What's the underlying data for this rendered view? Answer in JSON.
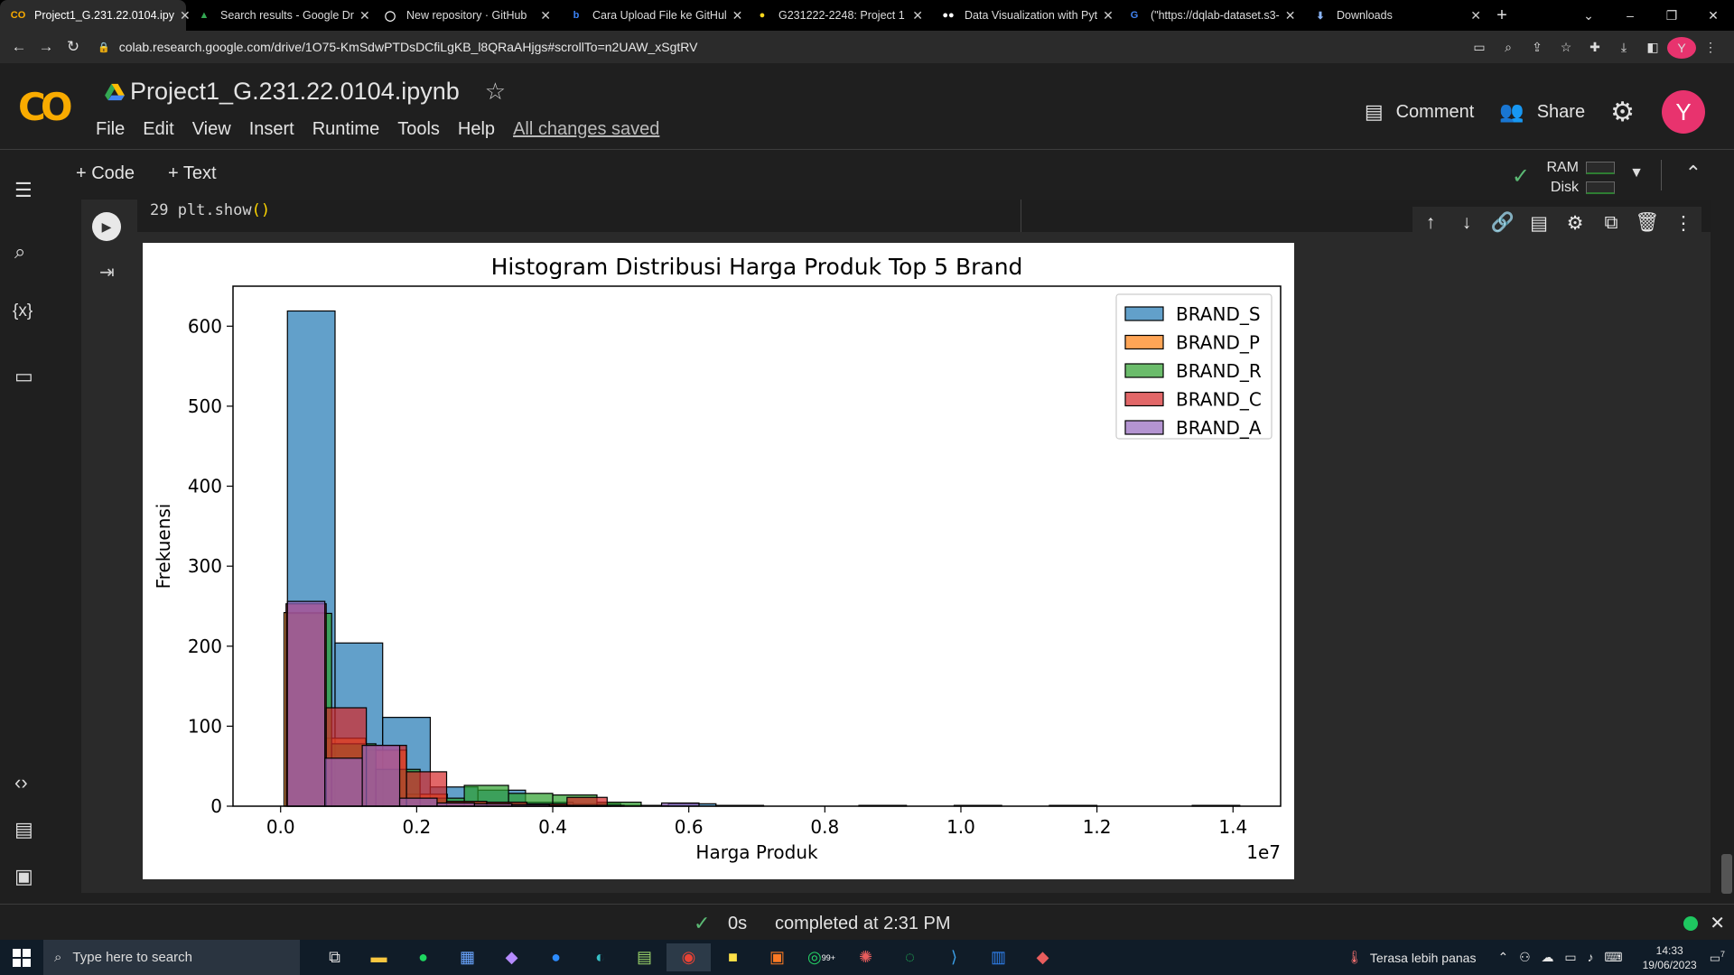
{
  "browser": {
    "tabs": [
      {
        "title": "Project1_G.231.22.0104.ipy",
        "icon": "colab-icon",
        "color": "#f9ab00",
        "glyph": "CO"
      },
      {
        "title": "Search results - Google Dr",
        "icon": "google-drive-icon",
        "color": "#34a853",
        "glyph": "▲"
      },
      {
        "title": "New repository · GitHub",
        "icon": "github-icon",
        "color": "#ffffff",
        "glyph": "◯"
      },
      {
        "title": "Cara Upload File ke GitHul",
        "icon": "bing-icon",
        "color": "#3b82f6",
        "glyph": "b"
      },
      {
        "title": "G231222-2248: Project 1",
        "icon": "kulino-icon",
        "color": "#f9d71c",
        "glyph": "●"
      },
      {
        "title": "Data Visualization with Pyt",
        "icon": "dqlab-icon",
        "color": "#ffffff",
        "glyph": "●●"
      },
      {
        "title": "(\"https://dqlab-dataset.s3-",
        "icon": "google-icon",
        "color": "#4285f4",
        "glyph": "G"
      },
      {
        "title": "Downloads",
        "icon": "download-icon",
        "color": "#8ab4f8",
        "glyph": "⬇"
      }
    ],
    "url": "colab.research.google.com/drive/1O75-KmSdwPTDsDCfiLgKB_l8QRaAHjgs#scrollTo=n2UAW_xSgtRV",
    "avatar_letter": "Y"
  },
  "colab": {
    "logo": "CO",
    "notebook_title": "Project1_G.231.22.0104.ipynb",
    "menu": [
      "File",
      "Edit",
      "View",
      "Insert",
      "Runtime",
      "Tools",
      "Help"
    ],
    "save_status": "All changes saved",
    "comment_label": "Comment",
    "share_label": "Share",
    "avatar_letter": "Y"
  },
  "toolbar": {
    "add_code": "+ Code",
    "add_text": "+ Text",
    "ram_label": "RAM",
    "disk_label": "Disk"
  },
  "cell": {
    "code_line": "29 plt.show",
    "code_parens": "()"
  },
  "status": {
    "duration": "0s",
    "message": "completed at 2:31 PM"
  },
  "taskbar": {
    "search_placeholder": "Type here to search",
    "weather": "Terasa lebih panas",
    "time": "14:33",
    "date": "19/06/2023",
    "notif_count": "7",
    "whatsapp_badge": "99+"
  },
  "chart_data": {
    "type": "bar",
    "title": "Histogram Distribusi Harga Produk Top 5 Brand",
    "xlabel": "Harga Produk",
    "ylabel": "Frekuensi",
    "x_offset_label": "1e7",
    "xlim": [
      -0.07,
      1.47
    ],
    "ylim": [
      0,
      650
    ],
    "xticks": [
      0.0,
      0.2,
      0.4,
      0.6,
      0.8,
      1.0,
      1.2,
      1.4
    ],
    "xtick_labels": [
      "0.0",
      "0.2",
      "0.4",
      "0.6",
      "0.8",
      "1.0",
      "1.2",
      "1.4"
    ],
    "yticks": [
      0,
      100,
      200,
      300,
      400,
      500,
      600
    ],
    "ytick_labels": [
      "0",
      "100",
      "200",
      "300",
      "400",
      "500",
      "600"
    ],
    "legend_position": "top-right",
    "grid": false,
    "series": [
      {
        "name": "BRAND_S",
        "color": "#1f77b4",
        "bins": [
          [
            0.01,
            0.08,
            619
          ],
          [
            0.08,
            0.15,
            204
          ],
          [
            0.15,
            0.22,
            111
          ],
          [
            0.22,
            0.29,
            24
          ],
          [
            0.29,
            0.36,
            20
          ],
          [
            0.36,
            0.43,
            5
          ],
          [
            0.43,
            0.5,
            3
          ],
          [
            0.5,
            0.57,
            1
          ],
          [
            0.57,
            0.64,
            3
          ],
          [
            0.64,
            0.71,
            1
          ],
          [
            0.85,
            0.92,
            1
          ],
          [
            0.99,
            1.06,
            1
          ],
          [
            1.13,
            1.2,
            1
          ],
          [
            1.34,
            1.41,
            1
          ]
        ]
      },
      {
        "name": "BRAND_P",
        "color": "#ff7f0e",
        "bins": [
          [
            0.005,
            0.065,
            242
          ],
          [
            0.065,
            0.125,
            85
          ],
          [
            0.125,
            0.185,
            70
          ],
          [
            0.185,
            0.245,
            15
          ],
          [
            0.245,
            0.305,
            5
          ],
          [
            0.305,
            0.365,
            3
          ],
          [
            0.365,
            0.425,
            2
          ],
          [
            0.425,
            0.485,
            1
          ]
        ]
      },
      {
        "name": "BRAND_R",
        "color": "#2ca02c",
        "bins": [
          [
            0.01,
            0.075,
            241
          ],
          [
            0.075,
            0.14,
            78
          ],
          [
            0.14,
            0.205,
            46
          ],
          [
            0.205,
            0.27,
            10
          ],
          [
            0.27,
            0.335,
            26
          ],
          [
            0.335,
            0.4,
            16
          ],
          [
            0.4,
            0.465,
            14
          ],
          [
            0.465,
            0.53,
            5
          ]
        ]
      },
      {
        "name": "BRAND_C",
        "color": "#d62728",
        "bins": [
          [
            0.008,
            0.067,
            253
          ],
          [
            0.067,
            0.126,
            123
          ],
          [
            0.126,
            0.185,
            76
          ],
          [
            0.185,
            0.244,
            43
          ],
          [
            0.244,
            0.303,
            6
          ],
          [
            0.303,
            0.362,
            5
          ],
          [
            0.362,
            0.421,
            3
          ],
          [
            0.421,
            0.48,
            11
          ]
        ]
      },
      {
        "name": "BRAND_A",
        "color": "#9467bd",
        "bins": [
          [
            0.01,
            0.065,
            256
          ],
          [
            0.065,
            0.12,
            60
          ],
          [
            0.12,
            0.175,
            76
          ],
          [
            0.175,
            0.23,
            10
          ],
          [
            0.23,
            0.285,
            4
          ],
          [
            0.285,
            0.34,
            3
          ],
          [
            0.34,
            0.395,
            2
          ],
          [
            0.395,
            0.45,
            1
          ],
          [
            0.45,
            0.505,
            1
          ],
          [
            0.505,
            0.56,
            0
          ],
          [
            0.56,
            0.615,
            4
          ]
        ]
      }
    ]
  }
}
